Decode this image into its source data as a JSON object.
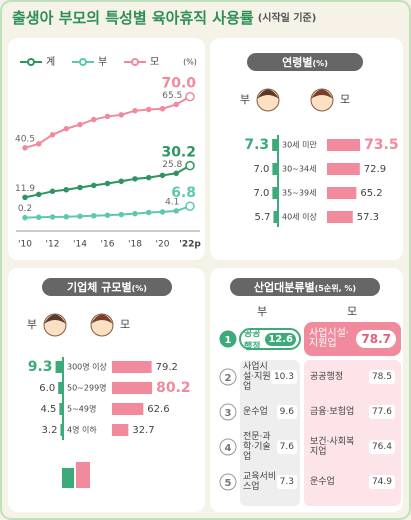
{
  "title": "출생아 부모의 특성별 육아휴직 사용률",
  "subtitle": "(시작일 기준)",
  "chart_data": [
    {
      "type": "line",
      "unit": "(%)",
      "categories": [
        "'10",
        null,
        "'12",
        null,
        "'14",
        null,
        "'16",
        null,
        "'18",
        null,
        "'20",
        null,
        "'22p"
      ],
      "ylim": [
        0,
        75
      ],
      "series": [
        {
          "name": "계",
          "color": "#2e9460",
          "values": [
            11.9,
            13.6,
            15.4,
            16.3,
            17.6,
            18.8,
            19.9,
            21.2,
            22.6,
            23.3,
            24.6,
            25.8,
            30.2
          ],
          "value_labels": [
            "11.9",
            null,
            null,
            null,
            null,
            null,
            null,
            null,
            null,
            null,
            null,
            "25.8",
            "30.2"
          ]
        },
        {
          "name": "부",
          "color": "#5cc8b0",
          "values": [
            0.2,
            0.4,
            0.6,
            0.7,
            1.0,
            1.3,
            1.6,
            2.0,
            2.5,
            3.2,
            3.5,
            4.1,
            6.8
          ],
          "value_labels": [
            "0.2",
            null,
            null,
            null,
            null,
            null,
            null,
            null,
            null,
            null,
            null,
            "4.1",
            "6.8"
          ]
        },
        {
          "name": "모",
          "color": "#f08a9c",
          "values": [
            40.5,
            42.8,
            48.0,
            51.5,
            53.9,
            56.8,
            58.6,
            59.5,
            61.9,
            62.6,
            63.0,
            65.5,
            70.0
          ],
          "value_labels": [
            "40.5",
            null,
            null,
            null,
            null,
            null,
            null,
            null,
            null,
            null,
            null,
            "65.5",
            "70.0"
          ]
        }
      ]
    },
    {
      "type": "diverging_bar",
      "title": "연령별",
      "unit": "(%)",
      "categories": [
        "30세 미만",
        "30~34세",
        "35~39세",
        "40세 이상"
      ],
      "series": [
        {
          "name": "부",
          "color": "#3daa7a",
          "values": [
            7.3,
            7.0,
            7.0,
            5.7
          ],
          "value_labels": [
            "7.3",
            "7.0",
            "7.0",
            "5.7"
          ]
        },
        {
          "name": "모",
          "color": "#f08a9c",
          "values": [
            73.5,
            72.9,
            65.2,
            57.3
          ],
          "value_labels": [
            "73.5",
            "72.9",
            "65.2",
            "57.3"
          ]
        }
      ]
    },
    {
      "type": "diverging_bar",
      "title": "기업체 규모별",
      "unit": "(%)",
      "categories": [
        "300명 이상",
        "50~299명",
        "5~49명",
        "4명 이하"
      ],
      "series": [
        {
          "name": "부",
          "color": "#3daa7a",
          "values": [
            9.3,
            6.0,
            4.5,
            3.2
          ],
          "value_labels": [
            "9.3",
            "6.0",
            "4.5",
            "3.2"
          ]
        },
        {
          "name": "모",
          "color": "#f08a9c",
          "values": [
            79.2,
            80.2,
            62.6,
            32.7
          ],
          "value_labels": [
            "79.2",
            "80.2",
            "62.6",
            "32.7"
          ]
        }
      ]
    }
  ],
  "industry": {
    "title": "산업대분류별",
    "note": "(5순위, %)",
    "father_label": "부",
    "mother_label": "모",
    "ranks": [
      1,
      2,
      3,
      4,
      5
    ],
    "father": [
      {
        "name": "공공행정",
        "value": 12.6
      },
      {
        "name": "사업시설·지원업",
        "value": 10.3
      },
      {
        "name": "운수업",
        "value": 9.6
      },
      {
        "name": "전문·과학·기술업",
        "value": 7.6
      },
      {
        "name": "교육서비스업",
        "value": 7.3
      }
    ],
    "mother": [
      {
        "name": "사업시설·지원업",
        "value": 78.7
      },
      {
        "name": "공공행정",
        "value": 78.5
      },
      {
        "name": "금융·보험업",
        "value": 77.6
      },
      {
        "name": "보건·사회복지업",
        "value": 76.4
      },
      {
        "name": "운수업",
        "value": 74.9
      }
    ]
  }
}
